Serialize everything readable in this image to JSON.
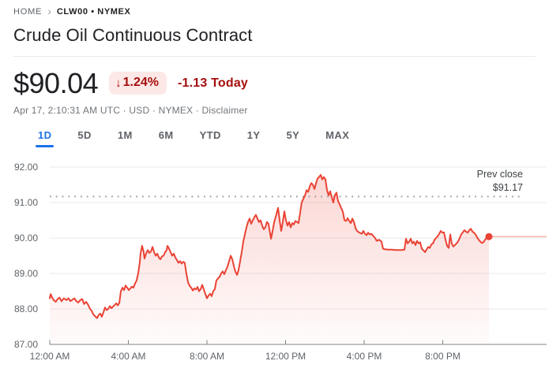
{
  "theme": {
    "accent": "#1a73e8",
    "neg": "#a50e0e",
    "neg-bg": "#fce8e6",
    "line-red": "#ea4335",
    "grid": "#e8eaed",
    "axis": "#80868b",
    "txt": "#202124",
    "muted": "#5f6368",
    "muted2": "#70757a",
    "divider": "#e8eaed"
  },
  "breadcrumb": {
    "home": "HOME",
    "chevron": "›",
    "symbol": "CLW00 • NYMEX"
  },
  "header": {
    "title": "Crude Oil Continuous Contract"
  },
  "price": {
    "value": "$90.04",
    "change_arrow": "↓",
    "change_percent": "1.24%",
    "change_today": "-1.13 Today",
    "meta_left": "Apr 17, 2:10:31 AM UTC · USD · NYMEX ·",
    "disclaimer": "Disclaimer"
  },
  "tabs": {
    "items": [
      "1D",
      "5D",
      "1M",
      "6M",
      "YTD",
      "1Y",
      "5Y",
      "MAX"
    ],
    "active": "1D"
  },
  "chart_data": {
    "type": "line",
    "title": "Crude Oil Continuous Contract, 1D intraday price (USD)",
    "x_unit": "hours since 12:00 AM",
    "x_ticks": [
      {
        "t": 0,
        "label": "12:00 AM"
      },
      {
        "t": 4,
        "label": "4:00 AM"
      },
      {
        "t": 8,
        "label": "8:00 AM"
      },
      {
        "t": 12,
        "label": "12:00 PM"
      },
      {
        "t": 16,
        "label": "4:00 PM"
      },
      {
        "t": 20,
        "label": "8:00 PM"
      }
    ],
    "y_ticks": [
      {
        "v": 87,
        "label": "87.00"
      },
      {
        "v": 88,
        "label": "88.00"
      },
      {
        "v": 89,
        "label": "89.00"
      },
      {
        "v": 90,
        "label": "90.00"
      },
      {
        "v": 91,
        "label": "91.00"
      },
      {
        "v": 92,
        "label": "92.00"
      }
    ],
    "ylim": [
      87,
      92.4
    ],
    "xlim_hours": [
      0,
      25.2
    ],
    "grid": true,
    "prev_close": {
      "label": "Prev close",
      "value_label": "$91.17",
      "value": 91.17
    },
    "last_point": {
      "t": 22.35,
      "price": 90.04
    },
    "points": [
      [
        0,
        88.3
      ],
      [
        0.05,
        88.42
      ],
      [
        0.12,
        88.32
      ],
      [
        0.2,
        88.25
      ],
      [
        0.3,
        88.2
      ],
      [
        0.4,
        88.28
      ],
      [
        0.5,
        88.32
      ],
      [
        0.6,
        88.22
      ],
      [
        0.72,
        88.3
      ],
      [
        0.85,
        88.25
      ],
      [
        0.95,
        88.3
      ],
      [
        1.05,
        88.22
      ],
      [
        1.15,
        88.26
      ],
      [
        1.25,
        88.3
      ],
      [
        1.35,
        88.22
      ],
      [
        1.45,
        88.18
      ],
      [
        1.55,
        88.25
      ],
      [
        1.65,
        88.28
      ],
      [
        1.75,
        88.14
      ],
      [
        1.85,
        88.2
      ],
      [
        1.95,
        88.12
      ],
      [
        2.05,
        88.0
      ],
      [
        2.13,
        87.95
      ],
      [
        2.21,
        87.85
      ],
      [
        2.3,
        87.8
      ],
      [
        2.41,
        87.74
      ],
      [
        2.49,
        87.83
      ],
      [
        2.57,
        87.87
      ],
      [
        2.65,
        87.78
      ],
      [
        2.73,
        87.9
      ],
      [
        2.81,
        88.04
      ],
      [
        2.89,
        87.97
      ],
      [
        2.97,
        88.0
      ],
      [
        3.06,
        88.08
      ],
      [
        3.14,
        88.02
      ],
      [
        3.22,
        88.07
      ],
      [
        3.3,
        88.11
      ],
      [
        3.38,
        88.16
      ],
      [
        3.46,
        88.1
      ],
      [
        3.54,
        88.17
      ],
      [
        3.62,
        88.5
      ],
      [
        3.7,
        88.6
      ],
      [
        3.78,
        88.53
      ],
      [
        3.86,
        88.66
      ],
      [
        3.94,
        88.6
      ],
      [
        4.02,
        88.53
      ],
      [
        4.1,
        88.58
      ],
      [
        4.18,
        88.63
      ],
      [
        4.26,
        88.6
      ],
      [
        4.34,
        88.72
      ],
      [
        4.42,
        88.8
      ],
      [
        4.5,
        89.0
      ],
      [
        4.58,
        89.3
      ],
      [
        4.62,
        89.56
      ],
      [
        4.7,
        89.78
      ],
      [
        4.78,
        89.6
      ],
      [
        4.82,
        89.42
      ],
      [
        4.9,
        89.56
      ],
      [
        4.99,
        89.66
      ],
      [
        5.07,
        89.58
      ],
      [
        5.15,
        89.62
      ],
      [
        5.23,
        89.75
      ],
      [
        5.31,
        89.6
      ],
      [
        5.39,
        89.5
      ],
      [
        5.47,
        89.56
      ],
      [
        5.55,
        89.45
      ],
      [
        5.63,
        89.4
      ],
      [
        5.71,
        89.48
      ],
      [
        5.79,
        89.5
      ],
      [
        5.87,
        89.6
      ],
      [
        5.95,
        89.66
      ],
      [
        5.99,
        89.78
      ],
      [
        6.07,
        89.7
      ],
      [
        6.15,
        89.6
      ],
      [
        6.23,
        89.5
      ],
      [
        6.31,
        89.56
      ],
      [
        6.39,
        89.45
      ],
      [
        6.47,
        89.38
      ],
      [
        6.55,
        89.3
      ],
      [
        6.63,
        89.35
      ],
      [
        6.71,
        89.28
      ],
      [
        6.79,
        89.33
      ],
      [
        6.87,
        89.3
      ],
      [
        6.95,
        89.0
      ],
      [
        7.04,
        88.75
      ],
      [
        7.12,
        88.65
      ],
      [
        7.2,
        88.6
      ],
      [
        7.28,
        88.52
      ],
      [
        7.36,
        88.58
      ],
      [
        7.44,
        88.55
      ],
      [
        7.52,
        88.62
      ],
      [
        7.6,
        88.5
      ],
      [
        7.68,
        88.56
      ],
      [
        7.76,
        88.68
      ],
      [
        7.84,
        88.55
      ],
      [
        7.92,
        88.42
      ],
      [
        8.0,
        88.3
      ],
      [
        8.08,
        88.38
      ],
      [
        8.16,
        88.43
      ],
      [
        8.24,
        88.36
      ],
      [
        8.32,
        88.5
      ],
      [
        8.4,
        88.56
      ],
      [
        8.48,
        88.8
      ],
      [
        8.56,
        88.86
      ],
      [
        8.64,
        88.9
      ],
      [
        8.72,
        89.0
      ],
      [
        8.8,
        89.06
      ],
      [
        8.88,
        88.98
      ],
      [
        8.97,
        89.1
      ],
      [
        9.05,
        89.2
      ],
      [
        9.13,
        89.35
      ],
      [
        9.21,
        89.5
      ],
      [
        9.29,
        89.4
      ],
      [
        9.37,
        89.2
      ],
      [
        9.45,
        89.05
      ],
      [
        9.53,
        88.96
      ],
      [
        9.61,
        89.1
      ],
      [
        9.69,
        89.35
      ],
      [
        9.77,
        89.6
      ],
      [
        9.85,
        89.9
      ],
      [
        9.93,
        90.1
      ],
      [
        10.01,
        90.3
      ],
      [
        10.09,
        90.45
      ],
      [
        10.17,
        90.55
      ],
      [
        10.25,
        90.4
      ],
      [
        10.33,
        90.5
      ],
      [
        10.41,
        90.58
      ],
      [
        10.49,
        90.65
      ],
      [
        10.57,
        90.55
      ],
      [
        10.65,
        90.45
      ],
      [
        10.73,
        90.5
      ],
      [
        10.81,
        90.35
      ],
      [
        10.89,
        90.25
      ],
      [
        10.97,
        90.3
      ],
      [
        11.05,
        90.45
      ],
      [
        11.13,
        90.4
      ],
      [
        11.26,
        89.98
      ],
      [
        11.34,
        90.2
      ],
      [
        11.42,
        90.45
      ],
      [
        11.5,
        90.6
      ],
      [
        11.62,
        90.85
      ],
      [
        11.7,
        90.5
      ],
      [
        11.78,
        90.2
      ],
      [
        11.86,
        90.45
      ],
      [
        11.94,
        90.75
      ],
      [
        12.02,
        90.5
      ],
      [
        12.1,
        90.35
      ],
      [
        12.18,
        90.45
      ],
      [
        12.26,
        90.3
      ],
      [
        12.34,
        90.42
      ],
      [
        12.42,
        90.38
      ],
      [
        12.5,
        90.48
      ],
      [
        12.58,
        90.45
      ],
      [
        12.66,
        90.42
      ],
      [
        12.74,
        90.7
      ],
      [
        12.82,
        91.0
      ],
      [
        12.9,
        91.1
      ],
      [
        12.99,
        91.2
      ],
      [
        13.07,
        91.35
      ],
      [
        13.15,
        91.3
      ],
      [
        13.23,
        91.45
      ],
      [
        13.31,
        91.55
      ],
      [
        13.39,
        91.5
      ],
      [
        13.47,
        91.38
      ],
      [
        13.55,
        91.55
      ],
      [
        13.63,
        91.68
      ],
      [
        13.71,
        91.72
      ],
      [
        13.79,
        91.78
      ],
      [
        13.87,
        91.65
      ],
      [
        13.95,
        91.72
      ],
      [
        14.03,
        91.65
      ],
      [
        14.11,
        91.35
      ],
      [
        14.19,
        91.2
      ],
      [
        14.27,
        91.32
      ],
      [
        14.35,
        91.15
      ],
      [
        14.43,
        91.0
      ],
      [
        14.51,
        91.2
      ],
      [
        14.59,
        91.28
      ],
      [
        14.67,
        91.05
      ],
      [
        14.75,
        90.95
      ],
      [
        14.83,
        90.85
      ],
      [
        14.91,
        90.75
      ],
      [
        15.0,
        90.5
      ],
      [
        15.08,
        90.48
      ],
      [
        15.16,
        90.56
      ],
      [
        15.24,
        90.48
      ],
      [
        15.32,
        90.42
      ],
      [
        15.4,
        90.55
      ],
      [
        15.48,
        90.45
      ],
      [
        15.56,
        90.28
      ],
      [
        15.64,
        90.2
      ],
      [
        15.76,
        90.15
      ],
      [
        15.88,
        90.12
      ],
      [
        15.96,
        90.2
      ],
      [
        16.04,
        90.12
      ],
      [
        16.12,
        90.08
      ],
      [
        16.2,
        90.15
      ],
      [
        16.28,
        90.1
      ],
      [
        16.36,
        90.12
      ],
      [
        16.48,
        90.05
      ],
      [
        16.56,
        90.0
      ],
      [
        16.64,
        89.92
      ],
      [
        16.76,
        89.95
      ],
      [
        16.88,
        89.9
      ],
      [
        16.96,
        89.7
      ],
      [
        17.08,
        89.68
      ],
      [
        17.25,
        89.67
      ],
      [
        17.41,
        89.67
      ],
      [
        17.57,
        89.66
      ],
      [
        17.73,
        89.66
      ],
      [
        17.89,
        89.66
      ],
      [
        18.05,
        89.67
      ],
      [
        18.13,
        89.98
      ],
      [
        18.21,
        89.85
      ],
      [
        18.29,
        89.9
      ],
      [
        18.37,
        89.98
      ],
      [
        18.45,
        89.85
      ],
      [
        18.53,
        89.9
      ],
      [
        18.61,
        89.8
      ],
      [
        18.69,
        89.92
      ],
      [
        18.77,
        89.85
      ],
      [
        18.85,
        89.88
      ],
      [
        18.93,
        89.7
      ],
      [
        19.02,
        89.65
      ],
      [
        19.1,
        89.6
      ],
      [
        19.18,
        89.68
      ],
      [
        19.26,
        89.75
      ],
      [
        19.34,
        89.72
      ],
      [
        19.42,
        89.82
      ],
      [
        19.5,
        89.85
      ],
      [
        19.58,
        89.95
      ],
      [
        19.66,
        90.0
      ],
      [
        19.74,
        90.05
      ],
      [
        19.82,
        90.12
      ],
      [
        19.9,
        90.2
      ],
      [
        19.98,
        90.15
      ],
      [
        20.06,
        90.16
      ],
      [
        20.14,
        89.95
      ],
      [
        20.22,
        89.78
      ],
      [
        20.3,
        89.72
      ],
      [
        20.38,
        90.1
      ],
      [
        20.46,
        89.85
      ],
      [
        20.54,
        89.76
      ],
      [
        20.62,
        89.8
      ],
      [
        20.7,
        89.85
      ],
      [
        20.78,
        89.9
      ],
      [
        20.86,
        90.0
      ],
      [
        20.94,
        90.1
      ],
      [
        21.02,
        90.16
      ],
      [
        21.1,
        90.22
      ],
      [
        21.18,
        90.18
      ],
      [
        21.27,
        90.15
      ],
      [
        21.35,
        90.22
      ],
      [
        21.43,
        90.26
      ],
      [
        21.51,
        90.18
      ],
      [
        21.59,
        90.15
      ],
      [
        21.67,
        90.1
      ],
      [
        21.75,
        90.02
      ],
      [
        21.83,
        89.95
      ],
      [
        21.91,
        89.9
      ],
      [
        21.99,
        89.86
      ],
      [
        22.07,
        89.88
      ],
      [
        22.15,
        89.95
      ],
      [
        22.23,
        90.0
      ],
      [
        22.35,
        90.04
      ]
    ]
  }
}
